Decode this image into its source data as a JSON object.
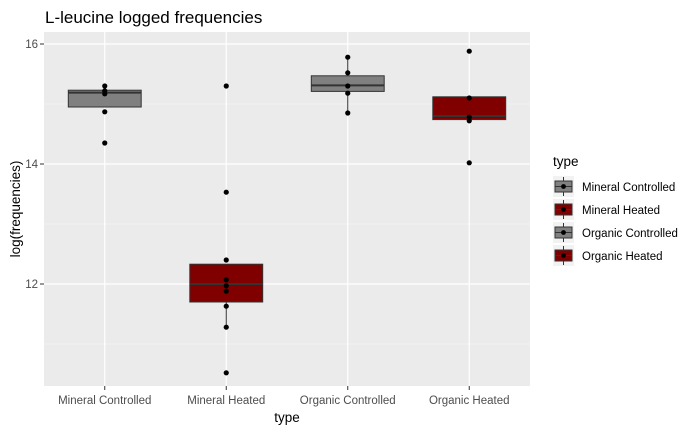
{
  "chart_data": {
    "type": "boxplot",
    "title": "L-leucine logged frequencies",
    "xlabel": "type",
    "ylabel": "log(frequencies)",
    "ylim": [
      10.3,
      16.2
    ],
    "yticks": [
      12,
      14,
      16
    ],
    "grid": true,
    "legend": {
      "title": "type",
      "position": "right",
      "entries": [
        "Mineral Controlled",
        "Mineral Heated",
        "Organic Controlled",
        "Organic Heated"
      ]
    },
    "categories": [
      "Mineral Controlled",
      "Mineral Heated",
      "Organic Controlled",
      "Organic Heated"
    ],
    "series": [
      {
        "category": "Mineral Controlled",
        "fill": "#808080",
        "q1": 14.95,
        "median": 15.19,
        "q3": 15.23,
        "whisker_low": 14.95,
        "whisker_high": 15.23,
        "points": [
          15.3,
          15.22,
          15.17,
          14.87,
          14.35
        ]
      },
      {
        "category": "Mineral Heated",
        "fill": "#800000",
        "q1": 11.7,
        "median": 12.0,
        "q3": 12.33,
        "whisker_low": 11.3,
        "whisker_high": 12.33,
        "points": [
          15.3,
          13.53,
          12.4,
          12.07,
          11.97,
          11.88,
          11.63,
          11.28,
          10.52
        ]
      },
      {
        "category": "Organic Controlled",
        "fill": "#808080",
        "q1": 15.21,
        "median": 15.31,
        "q3": 15.47,
        "whisker_low": 14.85,
        "whisker_high": 15.78,
        "points": [
          15.78,
          15.52,
          15.3,
          15.18,
          14.85
        ]
      },
      {
        "category": "Organic Heated",
        "fill": "#800000",
        "q1": 14.74,
        "median": 14.8,
        "q3": 15.12,
        "whisker_low": 14.74,
        "whisker_high": 15.12,
        "points": [
          15.88,
          15.1,
          14.78,
          14.72,
          14.02
        ]
      }
    ]
  }
}
